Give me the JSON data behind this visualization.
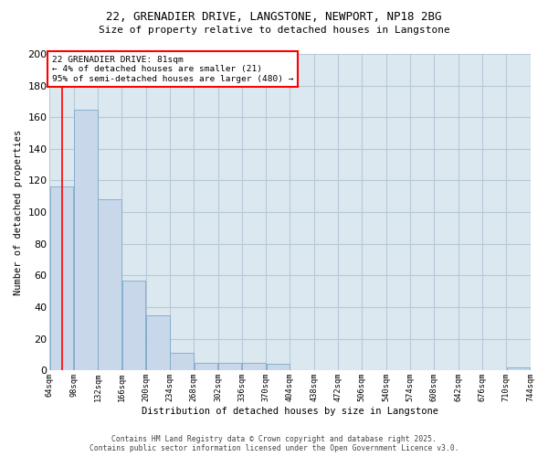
{
  "title_line1": "22, GRENADIER DRIVE, LANGSTONE, NEWPORT, NP18 2BG",
  "title_line2": "Size of property relative to detached houses in Langstone",
  "xlabel": "Distribution of detached houses by size in Langstone",
  "ylabel": "Number of detached properties",
  "bar_color": "#c8d8ea",
  "bar_edge_color": "#7aaac8",
  "grid_color": "#b8c8d8",
  "background_color": "#dce8f0",
  "fig_background": "#ffffff",
  "bins": [
    64,
    98,
    132,
    166,
    200,
    234,
    268,
    302,
    336,
    370,
    404,
    438,
    472,
    506,
    540,
    574,
    608,
    642,
    676,
    710,
    744
  ],
  "counts": [
    116,
    165,
    108,
    57,
    35,
    11,
    5,
    5,
    5,
    4,
    0,
    0,
    0,
    0,
    0,
    0,
    0,
    0,
    0,
    2
  ],
  "tick_labels": [
    "64sqm",
    "98sqm",
    "132sqm",
    "166sqm",
    "200sqm",
    "234sqm",
    "268sqm",
    "302sqm",
    "336sqm",
    "370sqm",
    "404sqm",
    "438sqm",
    "472sqm",
    "506sqm",
    "540sqm",
    "574sqm",
    "608sqm",
    "642sqm",
    "676sqm",
    "710sqm",
    "744sqm"
  ],
  "ylim": [
    0,
    200
  ],
  "yticks": [
    0,
    20,
    40,
    60,
    80,
    100,
    120,
    140,
    160,
    180,
    200
  ],
  "annotation_box_text": "22 GRENADIER DRIVE: 81sqm\n← 4% of detached houses are smaller (21)\n95% of semi-detached houses are larger (480) →",
  "annotation_box_color": "white",
  "annotation_box_edge_color": "red",
  "vline_x": 81,
  "vline_color": "red",
  "footer_line1": "Contains HM Land Registry data © Crown copyright and database right 2025.",
  "footer_line2": "Contains public sector information licensed under the Open Government Licence v3.0."
}
